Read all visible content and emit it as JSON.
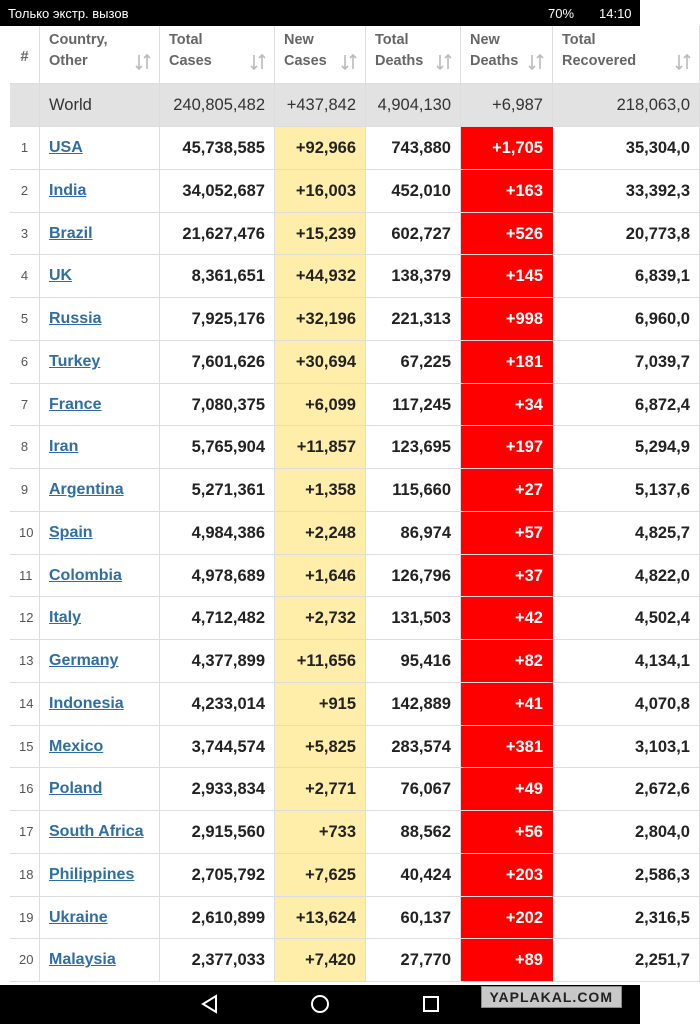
{
  "status_bar": {
    "carrier": "Только экстр. вызов",
    "battery": "70%",
    "time": "14:10"
  },
  "table": {
    "headers": [
      [
        "#"
      ],
      [
        "Country,",
        "Other"
      ],
      [
        "Total",
        "Cases"
      ],
      [
        "New",
        "Cases"
      ],
      [
        "Total",
        "Deaths"
      ],
      [
        "New",
        "Deaths"
      ],
      [
        "Total",
        "Recovered"
      ]
    ],
    "world": [
      "World",
      "240,805,482",
      "+437,842",
      "4,904,130",
      "+6,987",
      "218,063,0"
    ],
    "rows": [
      [
        "1",
        "USA",
        "45,738,585",
        "+92,966",
        "743,880",
        "+1,705",
        "35,304,0"
      ],
      [
        "2",
        "India",
        "34,052,687",
        "+16,003",
        "452,010",
        "+163",
        "33,392,3"
      ],
      [
        "3",
        "Brazil",
        "21,627,476",
        "+15,239",
        "602,727",
        "+526",
        "20,773,8"
      ],
      [
        "4",
        "UK",
        "8,361,651",
        "+44,932",
        "138,379",
        "+145",
        "6,839,1"
      ],
      [
        "5",
        "Russia",
        "7,925,176",
        "+32,196",
        "221,313",
        "+998",
        "6,960,0"
      ],
      [
        "6",
        "Turkey",
        "7,601,626",
        "+30,694",
        "67,225",
        "+181",
        "7,039,7"
      ],
      [
        "7",
        "France",
        "7,080,375",
        "+6,099",
        "117,245",
        "+34",
        "6,872,4"
      ],
      [
        "8",
        "Iran",
        "5,765,904",
        "+11,857",
        "123,695",
        "+197",
        "5,294,9"
      ],
      [
        "9",
        "Argentina",
        "5,271,361",
        "+1,358",
        "115,660",
        "+27",
        "5,137,6"
      ],
      [
        "10",
        "Spain",
        "4,984,386",
        "+2,248",
        "86,974",
        "+57",
        "4,825,7"
      ],
      [
        "11",
        "Colombia",
        "4,978,689",
        "+1,646",
        "126,796",
        "+37",
        "4,822,0"
      ],
      [
        "12",
        "Italy",
        "4,712,482",
        "+2,732",
        "131,503",
        "+42",
        "4,502,4"
      ],
      [
        "13",
        "Germany",
        "4,377,899",
        "+11,656",
        "95,416",
        "+82",
        "4,134,1"
      ],
      [
        "14",
        "Indonesia",
        "4,233,014",
        "+915",
        "142,889",
        "+41",
        "4,070,8"
      ],
      [
        "15",
        "Mexico",
        "3,744,574",
        "+5,825",
        "283,574",
        "+381",
        "3,103,1"
      ],
      [
        "16",
        "Poland",
        "2,933,834",
        "+2,771",
        "76,067",
        "+49",
        "2,672,6"
      ],
      [
        "17",
        "South Africa",
        "2,915,560",
        "+733",
        "88,562",
        "+56",
        "2,804,0"
      ],
      [
        "18",
        "Philippines",
        "2,705,792",
        "+7,625",
        "40,424",
        "+203",
        "2,586,3"
      ],
      [
        "19",
        "Ukraine",
        "2,610,899",
        "+13,624",
        "60,137",
        "+202",
        "2,316,5"
      ],
      [
        "20",
        "Malaysia",
        "2,377,033",
        "+7,420",
        "27,770",
        "+89",
        "2,251,7"
      ]
    ]
  },
  "watermark": "YAPLAKAL.COM"
}
